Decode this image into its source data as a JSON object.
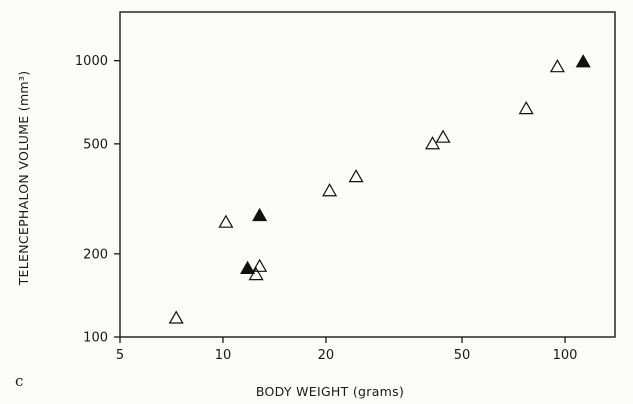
{
  "chart_data": {
    "type": "scatter",
    "panel_label": "c",
    "xlabel": "BODY WEIGHT (grams)",
    "ylabel": "TELENCEPHALON VOLUME (mm³)",
    "x_scale": "log",
    "y_scale": "log",
    "xlim": [
      5,
      140
    ],
    "ylim": [
      100,
      1500
    ],
    "x_ticks": [
      5,
      10,
      20,
      50,
      100
    ],
    "y_ticks": [
      100,
      200,
      500,
      1000
    ],
    "grid": false,
    "series": [
      {
        "marker": "open-triangle",
        "points": [
          {
            "x": 7.3,
            "y": 117
          },
          {
            "x": 10.2,
            "y": 260
          },
          {
            "x": 12.5,
            "y": 168
          },
          {
            "x": 12.8,
            "y": 180
          },
          {
            "x": 20.5,
            "y": 338
          },
          {
            "x": 24.5,
            "y": 380
          },
          {
            "x": 41,
            "y": 500
          },
          {
            "x": 44,
            "y": 528
          },
          {
            "x": 77,
            "y": 670
          },
          {
            "x": 95,
            "y": 950
          }
        ]
      },
      {
        "marker": "filled-triangle",
        "points": [
          {
            "x": 11.8,
            "y": 177
          },
          {
            "x": 12.8,
            "y": 275
          },
          {
            "x": 113,
            "y": 990
          }
        ]
      }
    ]
  }
}
